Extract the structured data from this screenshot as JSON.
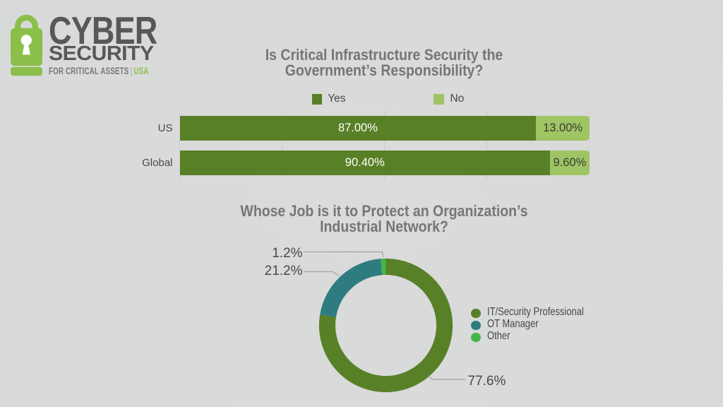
{
  "colors": {
    "background": "#d8d9d9",
    "dark_green": "#588026",
    "light_green": "#9fc464",
    "teal": "#2e7c80",
    "bright_green": "#44b549",
    "logo_green": "#8bbf4a",
    "logo_gray": "#57585a",
    "tagline_gray": "#77787b",
    "title_gray": "#757679",
    "text_dark": "#47484a",
    "bar_text_light": "#ffffff",
    "bar_text_dark": "#3a3d33",
    "leader_line": "#a2a2a2",
    "gridline": "#c9cacb"
  },
  "logo": {
    "icon": "padlock-icon",
    "word1": "CYBER",
    "word2": "SECURITY",
    "tagline": "FOR CRITICAL ASSETS",
    "separator": "|",
    "region": "USA"
  },
  "chart_data": [
    {
      "type": "bar",
      "orientation": "horizontal",
      "stacked": true,
      "title": "Is Critical Infrastructure Security the Government’s Responsibility?",
      "title_lines": [
        "Is Critical Infrastructure Security the",
        "Government’s Responsibility?"
      ],
      "categories": [
        "US",
        "Global"
      ],
      "series": [
        {
          "name": "Yes",
          "color_key": "dark_green",
          "values": [
            87.0,
            90.4
          ],
          "value_labels": [
            "87.00%",
            "90.40%"
          ]
        },
        {
          "name": "No",
          "color_key": "light_green",
          "values": [
            13.0,
            9.6
          ],
          "value_labels": [
            "13.00%",
            "9.60%"
          ]
        }
      ],
      "xlim": [
        0,
        100
      ],
      "gridlines": [
        0,
        25,
        50,
        75,
        100
      ],
      "legend_position": "top"
    },
    {
      "type": "donut",
      "title": "Whose Job is it to Protect an Organization’s Industrial Network?",
      "title_lines": [
        "Whose Job is it to Protect an Organization’s",
        "Industrial Network?"
      ],
      "slices": [
        {
          "label": "IT/Security Professional",
          "value": 77.6,
          "display": "77.6%",
          "color_key": "dark_green"
        },
        {
          "label": "OT Manager",
          "value": 21.2,
          "display": "21.2%",
          "color_key": "teal"
        },
        {
          "label": "Other",
          "value": 1.2,
          "display": "1.2%",
          "color_key": "bright_green"
        }
      ],
      "start_angle_deg": 0,
      "direction": "clockwise",
      "legend_position": "right"
    }
  ]
}
